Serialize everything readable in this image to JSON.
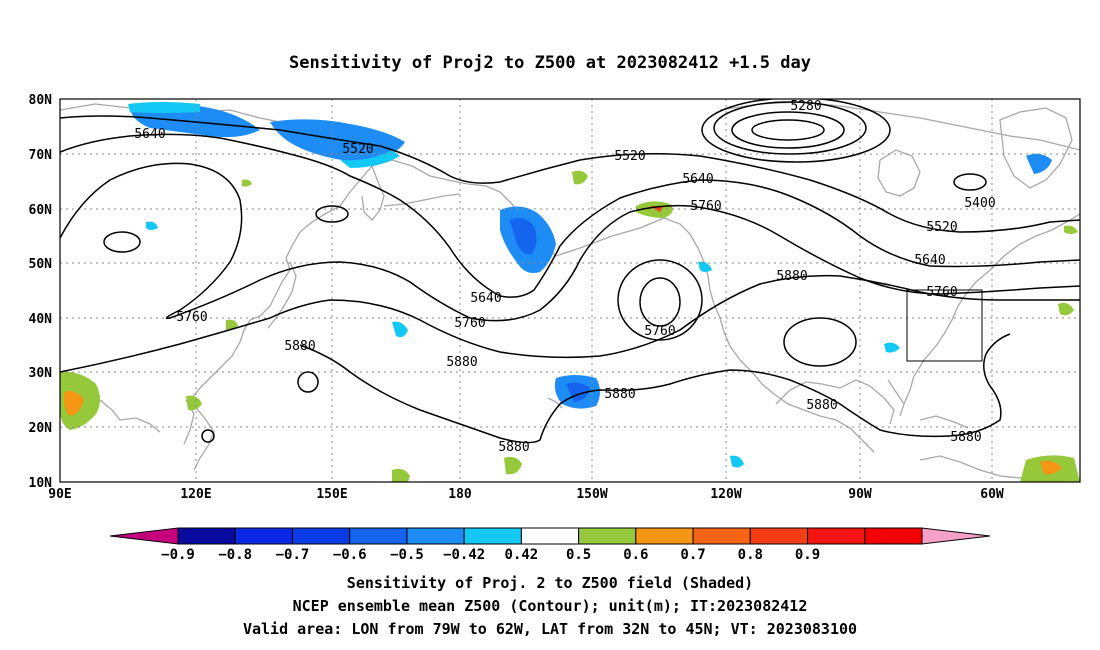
{
  "title": "Sensitivity of Proj2 to Z500 at 2023082412 +1.5 day",
  "lat_labels": [
    "80N",
    "70N",
    "60N",
    "50N",
    "40N",
    "30N",
    "20N",
    "10N"
  ],
  "lon_labels": [
    "90E",
    "120E",
    "150E",
    "180",
    "150W",
    "120W",
    "90W",
    "60W"
  ],
  "contour_labels": [
    {
      "text": "5280"
    },
    {
      "text": "5640"
    },
    {
      "text": "5520"
    },
    {
      "text": "5520"
    },
    {
      "text": "5640"
    },
    {
      "text": "5760"
    },
    {
      "text": "5400"
    },
    {
      "text": "5520"
    },
    {
      "text": "5640"
    },
    {
      "text": "5760"
    },
    {
      "text": "5880"
    },
    {
      "text": "5640"
    },
    {
      "text": "5760"
    },
    {
      "text": "5760"
    },
    {
      "text": "5880"
    },
    {
      "text": "5880"
    },
    {
      "text": "5880"
    },
    {
      "text": "5880"
    },
    {
      "text": "5880"
    },
    {
      "text": "5760"
    },
    {
      "text": "5880"
    }
  ],
  "colorbar": {
    "colors": [
      "#c4007c",
      "#0a0aa0",
      "#0a28e6",
      "#0a3ce6",
      "#1464f0",
      "#1e8cf5",
      "#14c8f5",
      "#ffffff",
      "#96c83c",
      "#f59614",
      "#f56414",
      "#f53c14",
      "#f51414",
      "#f50000",
      "#f5a0c8"
    ],
    "labels": [
      "-0.9",
      "-0.8",
      "-0.7",
      "-0.6",
      "-0.5",
      "-0.42",
      "0.42",
      "0.5",
      "0.6",
      "0.7",
      "0.8",
      "0.9"
    ]
  },
  "footer": [
    "Sensitivity of Proj. 2 to Z500 field (Shaded)",
    "NCEP ensemble mean Z500 (Contour); unit(m); IT:2023082412",
    "Valid area: LON from 79W to 62W, LAT from 32N to 45N; VT: 2023083100"
  ]
}
